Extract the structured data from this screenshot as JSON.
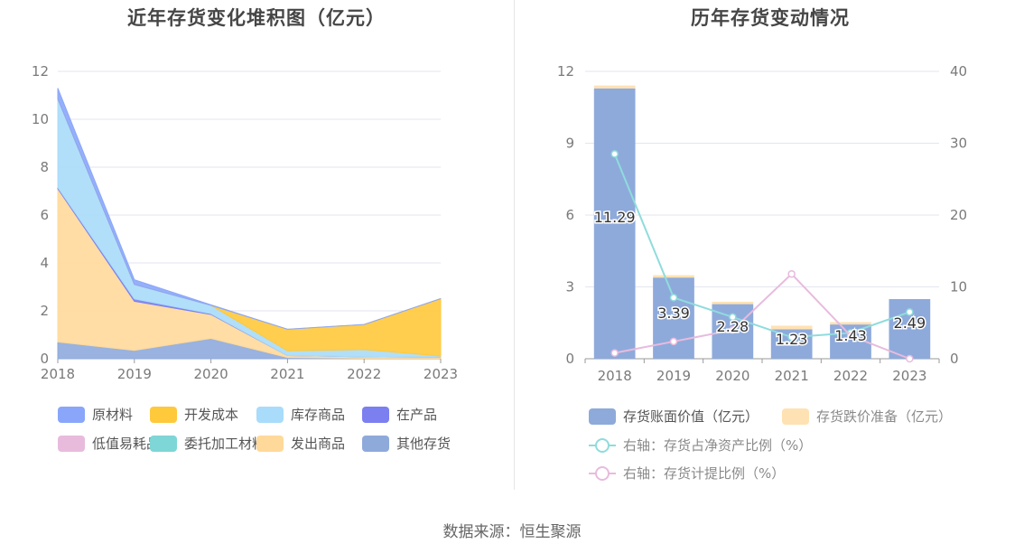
{
  "footer": {
    "source": "数据来源：恒生聚源"
  },
  "chart_data": [
    {
      "type": "area",
      "stacked": true,
      "title": "近年存货变化堆积图（亿元）",
      "categories": [
        "2018",
        "2019",
        "2020",
        "2021",
        "2022",
        "2023"
      ],
      "ylim": [
        0,
        12
      ],
      "yticks": [
        0,
        2,
        4,
        6,
        8,
        10,
        12
      ],
      "grid": true,
      "legend_position": "bottom",
      "series": [
        {
          "name": "其他存货",
          "color": "#8eaadb",
          "values": [
            0.7,
            0.35,
            0.85,
            0.05,
            0.02,
            0.02
          ]
        },
        {
          "name": "发出商品",
          "color": "#ffd99a",
          "values": [
            6.4,
            2.05,
            1.0,
            0.08,
            0.06,
            0.04
          ]
        },
        {
          "name": "委托加工材料",
          "color": "#7fd6d6",
          "values": [
            0.0,
            0.0,
            0.0,
            0.0,
            0.0,
            0.0
          ]
        },
        {
          "name": "低值易耗品",
          "color": "#e8bbdd",
          "values": [
            0.0,
            0.0,
            0.0,
            0.0,
            0.0,
            0.0
          ]
        },
        {
          "name": "在产品",
          "color": "#7b7ff0",
          "values": [
            0.05,
            0.1,
            0.03,
            0.0,
            0.0,
            0.0
          ]
        },
        {
          "name": "库存商品",
          "color": "#a8dcfa",
          "values": [
            3.7,
            0.6,
            0.35,
            0.2,
            0.3,
            0.05
          ]
        },
        {
          "name": "开发成本",
          "color": "#ffc93c",
          "values": [
            0.0,
            0.0,
            0.0,
            0.9,
            1.05,
            2.4
          ]
        },
        {
          "name": "原材料",
          "color": "#8aa6fa",
          "values": [
            0.45,
            0.2,
            0.02,
            0.0,
            0.0,
            0.0
          ]
        }
      ],
      "legend_order": [
        "原材料",
        "开发成本",
        "库存商品",
        "在产品",
        "低值易耗品",
        "委托加工材料",
        "发出商品",
        "其他存货"
      ]
    },
    {
      "type": "bar",
      "stacked": true,
      "title": "历年存货变动情况",
      "categories": [
        "2018",
        "2019",
        "2020",
        "2021",
        "2022",
        "2023"
      ],
      "ylim": [
        0,
        12
      ],
      "yticks": [
        0,
        3,
        6,
        9,
        12
      ],
      "y2lim": [
        0,
        40
      ],
      "y2ticks": [
        0,
        10,
        20,
        30,
        40
      ],
      "grid": true,
      "legend_position": "bottom",
      "series": [
        {
          "name": "存货账面价值（亿元）",
          "color": "#8eaadb",
          "values": [
            11.29,
            3.39,
            2.28,
            1.23,
            1.43,
            2.49
          ],
          "labels": [
            "11.29",
            "3.39",
            "2.28",
            "1.23",
            "1.43",
            "2.49"
          ]
        },
        {
          "name": "存货跌价准备（亿元）",
          "color": "#ffe2b3",
          "values": [
            0.12,
            0.1,
            0.1,
            0.15,
            0.1,
            0.0
          ]
        }
      ],
      "line_series": [
        {
          "name": "右轴：存货占净资产比例（%）",
          "color": "#8fdcdc",
          "axis": "right",
          "values": [
            28.5,
            8.5,
            5.8,
            3.0,
            3.6,
            6.5
          ]
        },
        {
          "name": "右轴：存货计提比例（%）",
          "color": "#e8bbdd",
          "axis": "right",
          "values": [
            0.8,
            2.4,
            4.0,
            11.8,
            3.2,
            0.0
          ]
        }
      ]
    }
  ]
}
